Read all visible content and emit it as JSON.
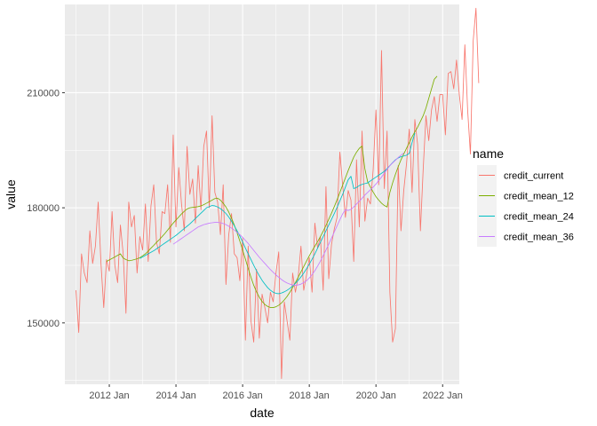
{
  "chart_data": {
    "type": "line",
    "xlabel": "date",
    "ylabel": "value",
    "x_unit": "month",
    "x_range": [
      "2010-09",
      "2022-07"
    ],
    "ylim": [
      134000,
      233000
    ],
    "x_ticks": [
      {
        "date": "2012-01",
        "label": "2012 Jan"
      },
      {
        "date": "2014-01",
        "label": "2014 Jan"
      },
      {
        "date": "2016-01",
        "label": "2016 Jan"
      },
      {
        "date": "2018-01",
        "label": "2018 Jan"
      },
      {
        "date": "2020-01",
        "label": "2020 Jan"
      },
      {
        "date": "2022-01",
        "label": "2022 Jan"
      }
    ],
    "y_ticks": [
      {
        "value": 150000,
        "label": "150000"
      },
      {
        "value": 180000,
        "label": "180000"
      },
      {
        "value": 210000,
        "label": "210000"
      }
    ],
    "grid": true,
    "legend": {
      "title": "name",
      "position": "right"
    },
    "series": [
      {
        "name": "credit_current",
        "color": "#F8766D",
        "start": "2011-01",
        "values": [
          158500,
          147500,
          168000,
          163000,
          160500,
          174000,
          165500,
          170000,
          181500,
          165500,
          154000,
          166500,
          163500,
          179000,
          165000,
          160500,
          175500,
          168000,
          152500,
          181500,
          175000,
          178000,
          163000,
          172500,
          169000,
          181000,
          166000,
          180500,
          186000,
          171000,
          168000,
          179000,
          178500,
          186000,
          171000,
          199000,
          175000,
          190500,
          181000,
          174000,
          196000,
          183500,
          187500,
          176000,
          191000,
          179500,
          196000,
          200000,
          180000,
          204000,
          184000,
          181500,
          173000,
          186000,
          160000,
          173000,
          178500,
          168000,
          167000,
          161000,
          172000,
          145500,
          170000,
          150500,
          145000,
          164000,
          146000,
          157500,
          154000,
          150000,
          158000,
          155500,
          163000,
          168500,
          135500,
          155500,
          150500,
          145500,
          163000,
          158000,
          162000,
          170000,
          158500,
          162500,
          167000,
          158000,
          176000,
          169500,
          172500,
          158500,
          185500,
          161500,
          170500,
          174500,
          177500,
          194500,
          186000,
          177500,
          184500,
          182000,
          166000,
          192500,
          175000,
          200000,
          176500,
          182500,
          181000,
          190000,
          205500,
          186000,
          221000,
          185000,
          200000,
          158000,
          145000,
          148500,
          191000,
          174000,
          184500,
          191500,
          200500,
          184000,
          203000,
          196500,
          174000,
          190000,
          204000,
          197500,
          205500,
          209000,
          202500,
          209500,
          209500,
          199000,
          215000,
          215500,
          211000,
          218500,
          209500,
          203000,
          222500,
          205500,
          194000,
          223500,
          232000,
          212500
        ]
      },
      {
        "name": "credit_mean_12",
        "color": "#7CAE00",
        "start": "2011-12",
        "values": [
          166000,
          166400,
          166800,
          167200,
          167600,
          168000,
          166900,
          166500,
          166200,
          166300,
          166500,
          166700,
          167000,
          167500,
          168000,
          168700,
          169500,
          170200,
          171000,
          171700,
          172500,
          173300,
          174200,
          175100,
          176000,
          176800,
          177600,
          178400,
          179100,
          179700,
          180000,
          180100,
          180200,
          180300,
          180500,
          180800,
          181200,
          181600,
          182000,
          182400,
          182500,
          182000,
          181200,
          180200,
          178900,
          177300,
          175500,
          173500,
          171300,
          169000,
          166600,
          164200,
          161900,
          159800,
          158100,
          156700,
          155600,
          154800,
          154300,
          154000,
          154000,
          154200,
          154600,
          155200,
          156000,
          156900,
          158000,
          159200,
          160500,
          161900,
          163300,
          164700,
          166100,
          167500,
          168800,
          170000,
          171200,
          172500,
          173900,
          175400,
          177000,
          178600,
          180300,
          182100,
          184000,
          185900,
          187800,
          189700,
          191500,
          193200,
          194500,
          195500,
          196100,
          190200,
          186800,
          185400,
          184100,
          182900,
          182000,
          181200,
          180600,
          180200,
          184000,
          186500,
          188700,
          190700,
          192500,
          194000,
          195500,
          197000,
          198500,
          199800,
          201000,
          202500,
          204000,
          206000,
          208500,
          211000,
          213500,
          214300
        ]
      },
      {
        "name": "credit_mean_24",
        "color": "#00BFC4",
        "start": "2012-12",
        "values": [
          166800,
          167200,
          167600,
          168000,
          168400,
          168800,
          169300,
          169800,
          170300,
          170800,
          171300,
          171800,
          172300,
          172800,
          173400,
          174000,
          174600,
          175200,
          175800,
          176500,
          177200,
          177900,
          178600,
          179300,
          180000,
          180300,
          180600,
          180500,
          180200,
          179800,
          179200,
          178500,
          177600,
          176500,
          175300,
          174000,
          172600,
          171100,
          169500,
          168000,
          166500,
          165000,
          163600,
          162300,
          161100,
          160100,
          159200,
          158500,
          158000,
          157700,
          157600,
          157800,
          158100,
          158500,
          159000,
          159600,
          160300,
          161100,
          162000,
          163000,
          164100,
          165300,
          166600,
          168000,
          169500,
          171000,
          172500,
          174000,
          175500,
          177000,
          178500,
          180100,
          181800,
          183500,
          185400,
          187300,
          188200,
          185000,
          185300,
          185800,
          186100,
          186300,
          186500,
          187000,
          187500,
          188000,
          188500,
          189000,
          189500,
          190200,
          191000,
          191800,
          192500,
          193000,
          193300,
          193500,
          193700,
          194200,
          197000,
          199500
        ]
      },
      {
        "name": "credit_mean_36",
        "color": "#C77CFF",
        "start": "2013-12",
        "values": [
          170500,
          171000,
          171500,
          172000,
          172500,
          173000,
          173500,
          174000,
          174500,
          175000,
          175300,
          175600,
          175800,
          176000,
          176100,
          176200,
          176200,
          176100,
          175900,
          175600,
          175200,
          174700,
          174200,
          173600,
          173000,
          172300,
          171500,
          170700,
          169800,
          168900,
          168000,
          167100,
          166300,
          165500,
          164700,
          163900,
          163200,
          162500,
          161900,
          161300,
          160800,
          160400,
          160100,
          159900,
          159800,
          159900,
          160100,
          160500,
          161000,
          161700,
          162600,
          163600,
          164800,
          166100,
          167500,
          169000,
          170500,
          172100,
          173700,
          175300,
          176900,
          178400,
          179500,
          179300,
          179600,
          180200,
          181000,
          181700,
          182500,
          183300,
          184000,
          184700,
          185400,
          186200,
          187100,
          188000,
          189000,
          190000,
          191000,
          191700,
          192400,
          193100,
          193700,
          194300
        ]
      }
    ]
  }
}
